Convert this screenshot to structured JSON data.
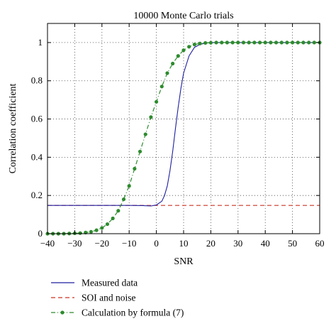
{
  "chart_data": {
    "type": "line",
    "title": "10000 Monte Carlo trials",
    "xlabel": "SNR",
    "ylabel": "Correlation coefficient",
    "xlim": [
      -40,
      60
    ],
    "ylim": [
      0,
      1.1
    ],
    "x_ticks": [
      -40,
      -30,
      -20,
      -10,
      0,
      10,
      20,
      30,
      40,
      50,
      60
    ],
    "y_ticks": [
      0,
      0.2,
      0.4,
      0.6,
      0.8,
      1
    ],
    "x_tick_labels": [
      "−40",
      "−30",
      "−20",
      "−10",
      "0",
      "10",
      "20",
      "30",
      "40",
      "50",
      "60"
    ],
    "y_tick_labels": [
      "0",
      "0.2",
      "0.4",
      "0.6",
      "0.8",
      "1"
    ],
    "grid": true,
    "legend_position": "below",
    "series": [
      {
        "name": "Measured data",
        "style": "solid",
        "color": "#1f1fa0",
        "x": [
          -40,
          -30,
          -20,
          -10,
          -5,
          -2,
          0,
          2,
          3,
          4,
          5,
          6,
          7,
          8,
          9,
          10,
          12,
          14,
          16,
          18,
          20,
          30,
          40,
          50,
          60
        ],
        "y": [
          0.148,
          0.148,
          0.148,
          0.148,
          0.147,
          0.145,
          0.15,
          0.17,
          0.2,
          0.25,
          0.33,
          0.43,
          0.55,
          0.66,
          0.76,
          0.84,
          0.93,
          0.975,
          0.99,
          0.997,
          1.0,
          1.0,
          1.0,
          1.0,
          1.0
        ]
      },
      {
        "name": "SOI and noise",
        "style": "dashed",
        "color": "#cc3322",
        "x": [
          -40,
          60
        ],
        "y": [
          0.148,
          0.148
        ]
      },
      {
        "name": "Calculation by formula (7)",
        "style": "dash-dot-marker",
        "color": "#2e8b2e",
        "x": [
          -40,
          -38,
          -36,
          -34,
          -32,
          -30,
          -28,
          -26,
          -24,
          -22,
          -20,
          -18,
          -16,
          -14,
          -12,
          -10,
          -8,
          -6,
          -4,
          -2,
          0,
          2,
          4,
          6,
          8,
          10,
          12,
          14,
          16,
          18,
          20,
          22,
          24,
          26,
          28,
          30,
          32,
          34,
          36,
          38,
          40,
          42,
          44,
          46,
          48,
          50,
          52,
          54,
          56,
          58,
          60
        ],
        "y": [
          0.0,
          0.0,
          0.0,
          0.0,
          0.001,
          0.002,
          0.003,
          0.006,
          0.01,
          0.018,
          0.03,
          0.05,
          0.08,
          0.12,
          0.18,
          0.25,
          0.34,
          0.43,
          0.52,
          0.61,
          0.69,
          0.77,
          0.84,
          0.89,
          0.93,
          0.96,
          0.978,
          0.99,
          0.995,
          0.998,
          0.999,
          1.0,
          1.0,
          1.0,
          1.0,
          1.0,
          1.0,
          1.0,
          1.0,
          1.0,
          1.0,
          1.0,
          1.0,
          1.0,
          1.0,
          1.0,
          1.0,
          1.0,
          1.0,
          1.0,
          1.0
        ]
      }
    ]
  }
}
